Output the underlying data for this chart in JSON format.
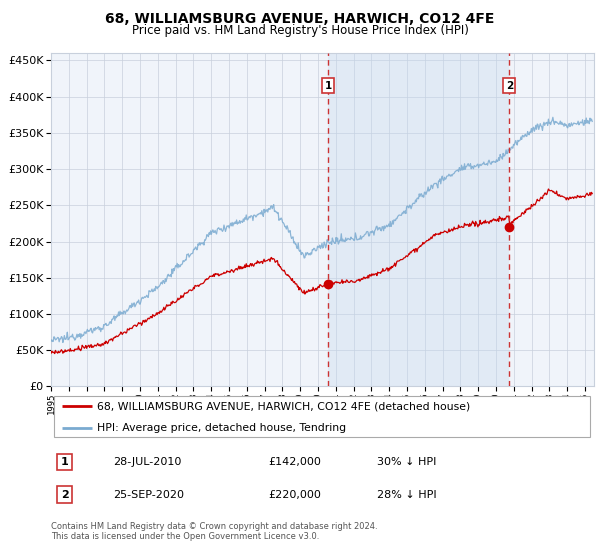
{
  "title": "68, WILLIAMSBURG AVENUE, HARWICH, CO12 4FE",
  "subtitle": "Price paid vs. HM Land Registry's House Price Index (HPI)",
  "legend_line1": "68, WILLIAMSBURG AVENUE, HARWICH, CO12 4FE (detached house)",
  "legend_line2": "HPI: Average price, detached house, Tendring",
  "annotation1_label": "1",
  "annotation1_date": "28-JUL-2010",
  "annotation1_price": "£142,000",
  "annotation1_hpi": "30% ↓ HPI",
  "annotation1_year": 2010.57,
  "annotation1_value": 142000,
  "annotation2_label": "2",
  "annotation2_date": "25-SEP-2020",
  "annotation2_price": "£220,000",
  "annotation2_hpi": "28% ↓ HPI",
  "annotation2_year": 2020.74,
  "annotation2_value": 220000,
  "red_line_color": "#cc0000",
  "blue_line_color": "#7aaad0",
  "fill_color": "#e8f0f8",
  "background_color": "#f0f4fa",
  "grid_color": "#c8d0dc",
  "ylim": [
    0,
    460000
  ],
  "xlim_start": 1995.0,
  "xlim_end": 2025.5,
  "footnote": "Contains HM Land Registry data © Crown copyright and database right 2024.\nThis data is licensed under the Open Government Licence v3.0."
}
